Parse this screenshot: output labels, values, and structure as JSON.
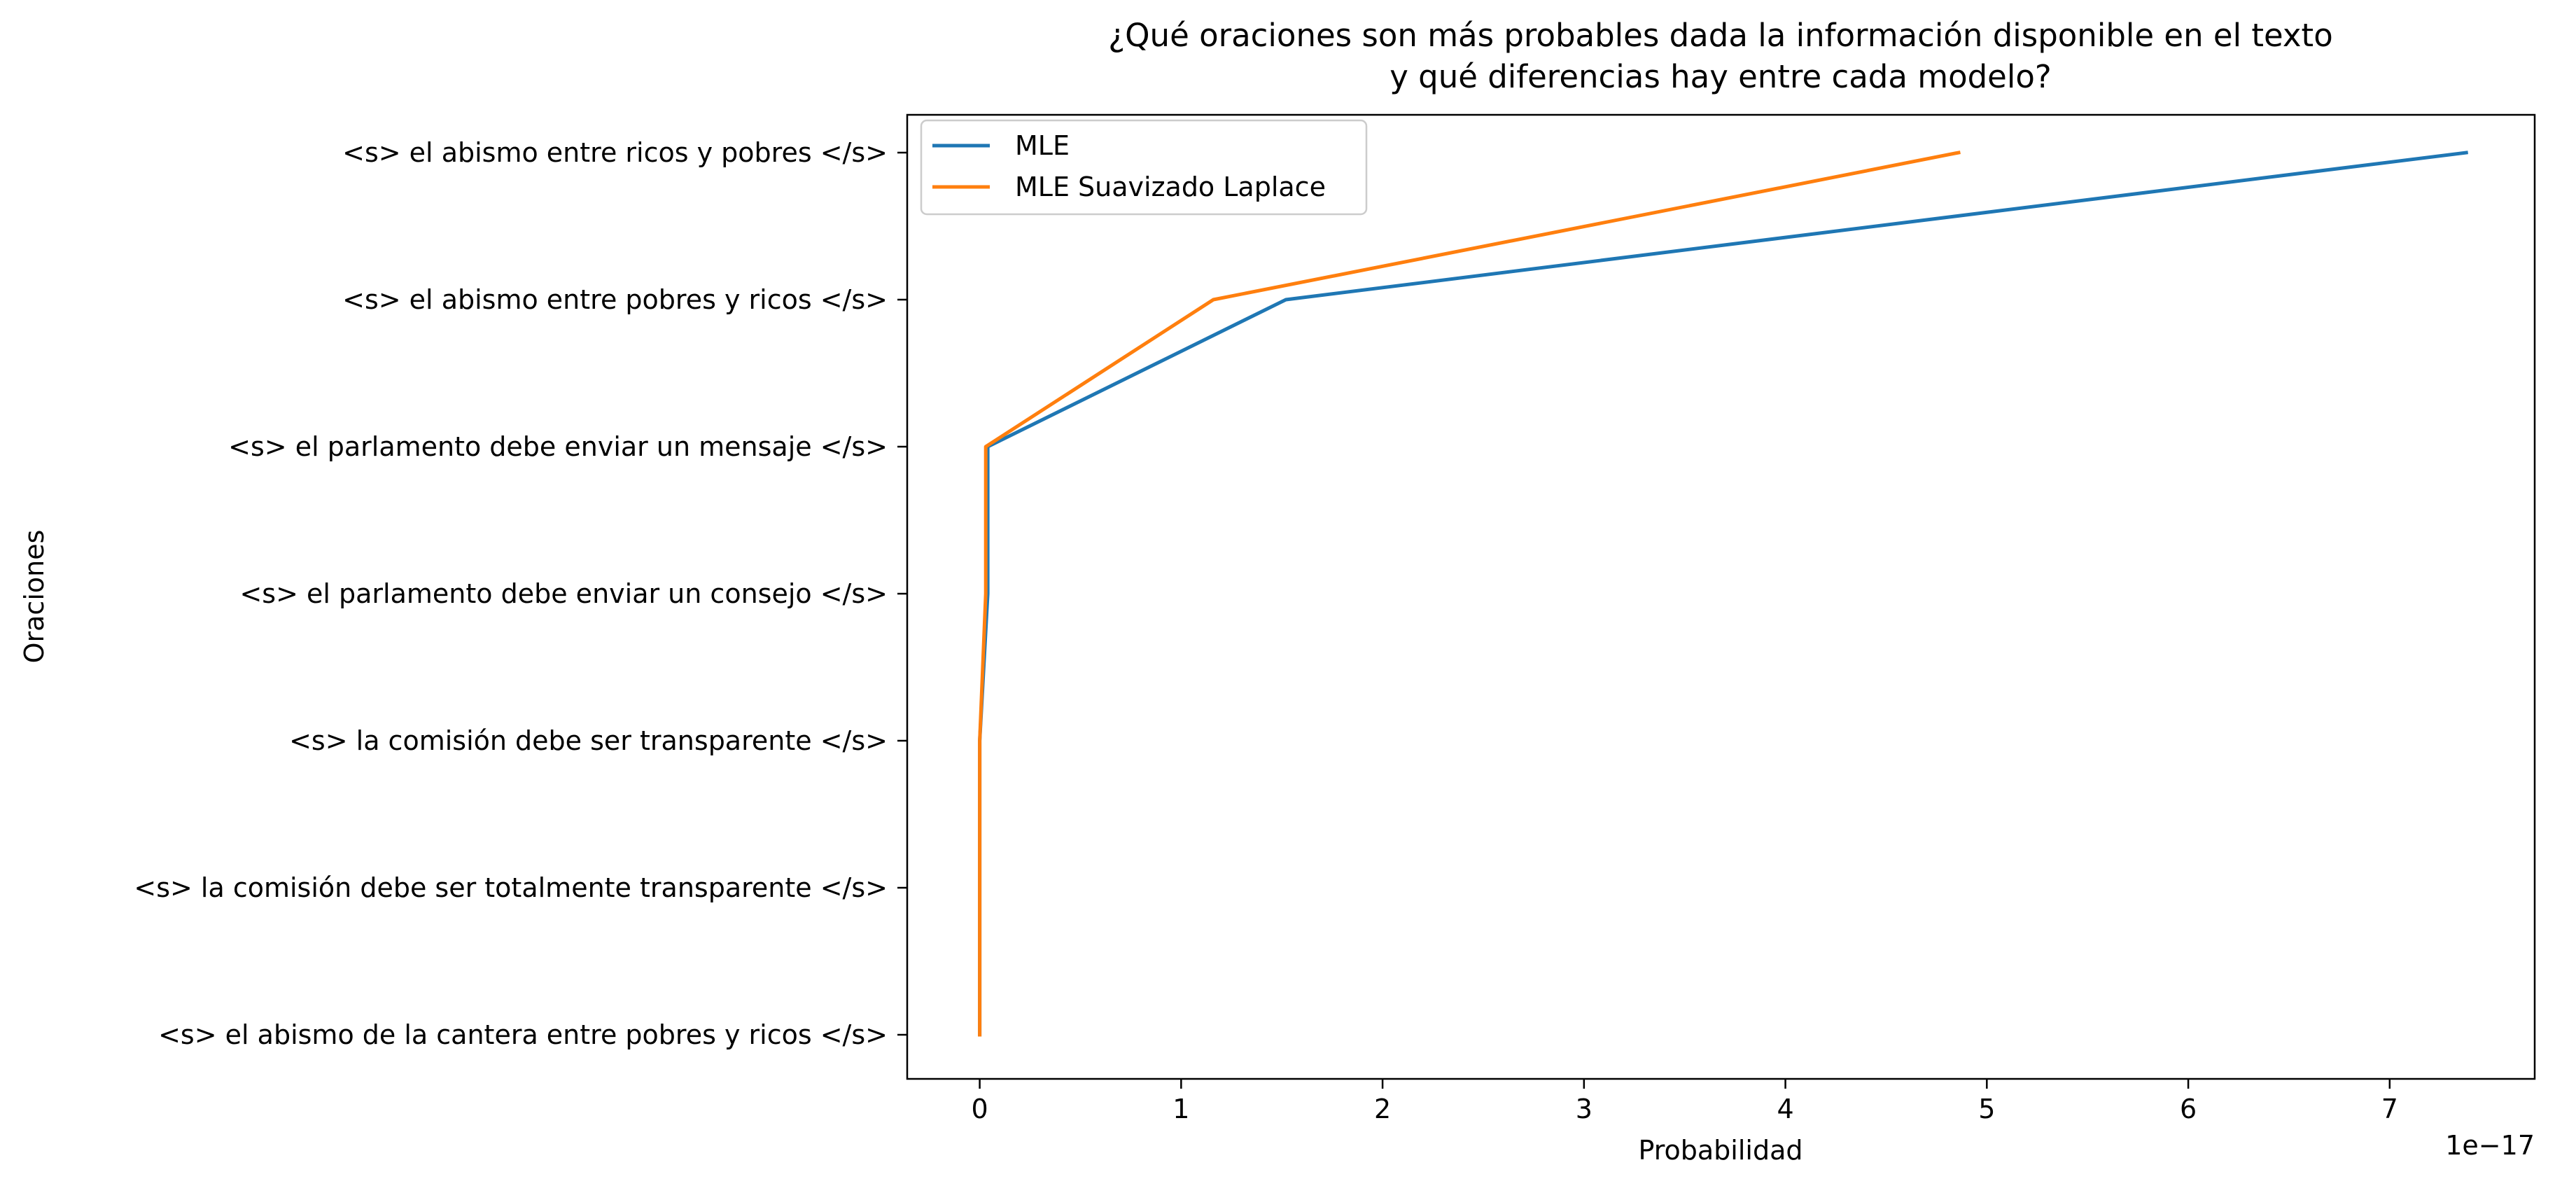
{
  "chart_data": {
    "type": "line",
    "title_lines": [
      "¿Qué oraciones son más probables dada la información disponible en el texto",
      "y qué diferencias hay entre cada modelo?"
    ],
    "xlabel": "Probabilidad",
    "ylabel": "Oraciones",
    "x_offset_text": "1e−17",
    "x_scale": 1e-17,
    "xlim": [
      -0.36,
      7.72
    ],
    "x_ticks": [
      0,
      1,
      2,
      3,
      4,
      5,
      6,
      7
    ],
    "x_tick_labels": [
      "0",
      "1",
      "2",
      "3",
      "4",
      "5",
      "6",
      "7"
    ],
    "categories": [
      "<s> el abismo entre ricos y pobres </s>",
      "<s> el abismo entre pobres y ricos </s>",
      "<s> el parlamento debe enviar un mensaje </s>",
      "<s> el parlamento debe enviar un consejo </s>",
      "<s> la comisión debe ser transparente </s>",
      "<s> la comisión debe ser totalmente transparente </s>",
      "<s> el abismo de la cantera entre pobres y ricos </s>"
    ],
    "series": [
      {
        "name": "MLE",
        "color": "#1f77b4",
        "values": [
          7.38,
          1.52,
          0.04,
          0.04,
          0.0,
          0.0,
          0.0
        ]
      },
      {
        "name": "MLE Suavizado Laplace",
        "color": "#ff7f0e",
        "values": [
          4.86,
          1.16,
          0.03,
          0.03,
          0.0,
          0.0,
          0.0
        ]
      }
    ],
    "legend_position": "top-left",
    "grid": false
  }
}
